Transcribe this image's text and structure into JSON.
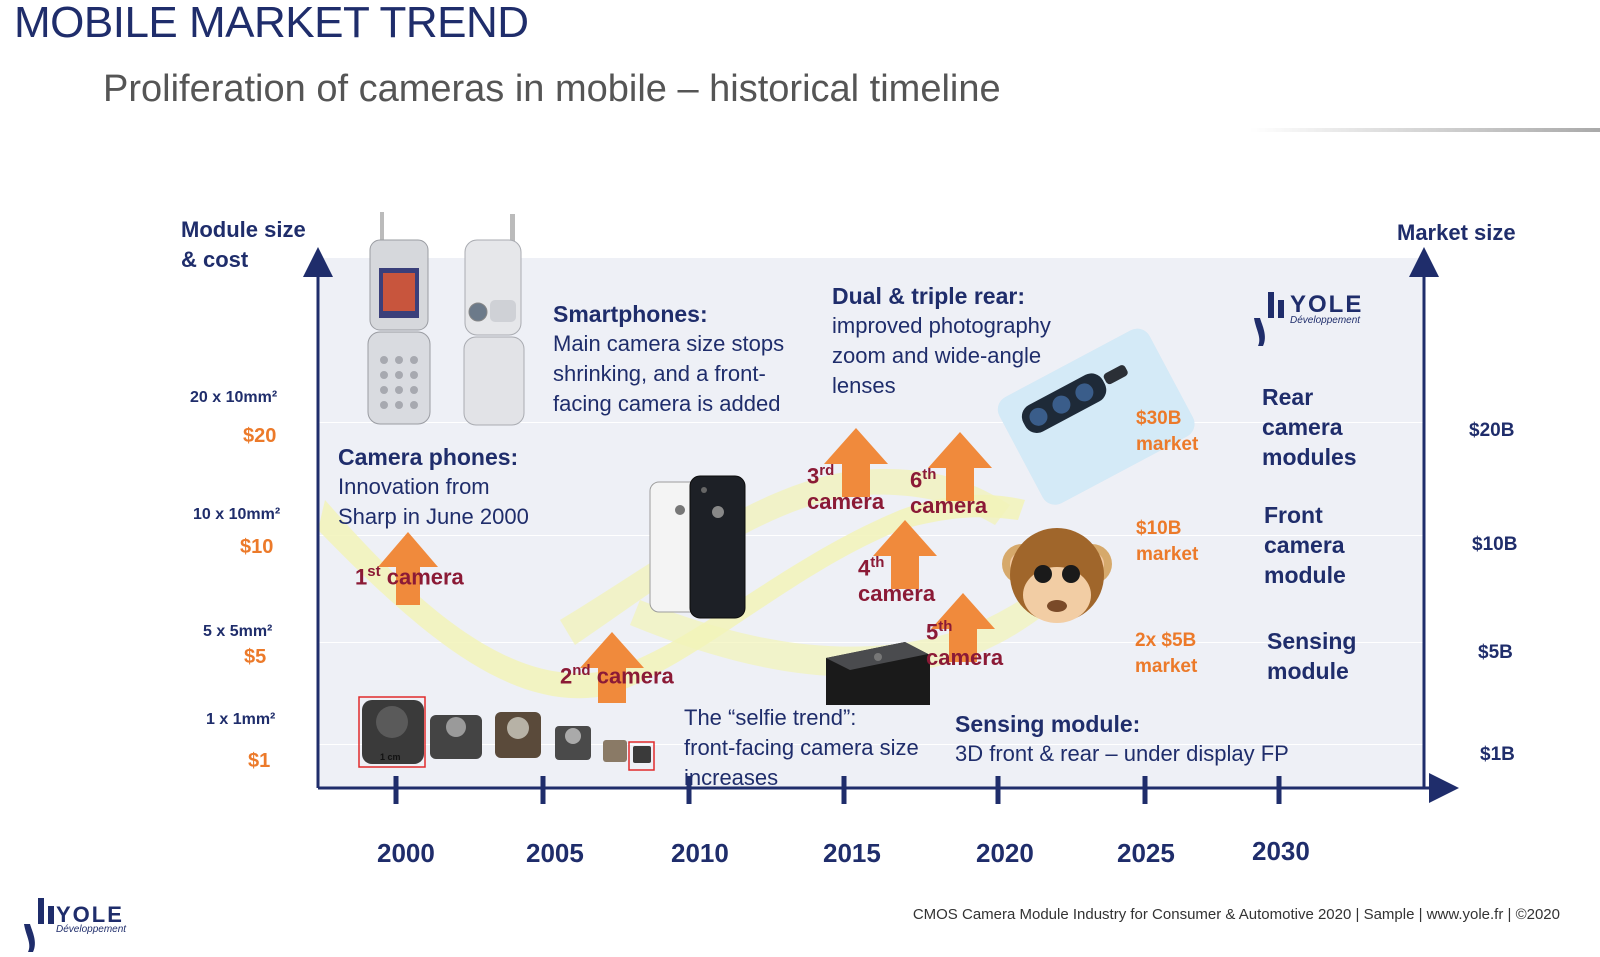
{
  "header": {
    "title": "MOBILE MARKET TREND",
    "subtitle": "Proliferation of cameras in mobile – historical timeline"
  },
  "axes": {
    "left_label": [
      "Module size",
      "& cost"
    ],
    "right_label": "Market size",
    "left_ticks": [
      {
        "size": "20 x 10mm²",
        "cost": "$20"
      },
      {
        "size": "10 x 10mm²",
        "cost": "$10"
      },
      {
        "size": "5 x 5mm²",
        "cost": "$5"
      },
      {
        "size": "1 x 1mm²",
        "cost": "$1"
      }
    ],
    "right_ticks": [
      "$20B",
      "$10B",
      "$5B",
      "$1B"
    ],
    "x_ticks": [
      "2000",
      "2005",
      "2010",
      "2015",
      "2020",
      "2025",
      "2030"
    ]
  },
  "callouts": {
    "camera_phones": {
      "heading": "Camera phones:",
      "lines": [
        "Innovation from",
        "Sharp in June 2000"
      ]
    },
    "smartphones": {
      "heading": "Smartphones:",
      "lines": [
        "Main camera size stops",
        "shrinking, and a front-",
        "facing camera is added"
      ]
    },
    "dual_triple": {
      "heading": "Dual & triple rear:",
      "lines": [
        "improved photography",
        "zoom and wide-angle",
        "lenses"
      ]
    },
    "selfie": {
      "lines": [
        "The “selfie trend”:",
        "front-facing camera size",
        "increases"
      ]
    },
    "sensing": {
      "heading": "Sensing module:",
      "line": "3D front & rear – under display FP"
    }
  },
  "cameras": {
    "first": {
      "num": "1",
      "sup": "st",
      "word": "camera"
    },
    "second": {
      "num": "2",
      "sup": "nd",
      "word": "camera"
    },
    "third": {
      "num": "3",
      "sup": "rd",
      "word": "camera"
    },
    "fourth": {
      "num": "4",
      "sup": "th",
      "word": "camera"
    },
    "fifth": {
      "num": "5",
      "sup": "th",
      "word": "camera"
    },
    "sixth": {
      "num": "6",
      "sup": "th",
      "word": "camera"
    }
  },
  "markets": {
    "m30": [
      "$30B",
      "market"
    ],
    "m10": [
      "$10B",
      "market"
    ],
    "m5": [
      "2x $5B",
      "market"
    ]
  },
  "segments": {
    "rear": [
      "Rear",
      "camera",
      "modules"
    ],
    "front": [
      "Front",
      "camera",
      "module"
    ],
    "sensing": [
      "Sensing",
      "module"
    ]
  },
  "logo": {
    "brand": "YOLE",
    "sub": "Développement"
  },
  "module_photo_label": "1 cm",
  "footer": "CMOS Camera Module Industry for Consumer & Automotive 2020 | Sample | www.yole.fr | ©2020",
  "colors": {
    "navy": "#1f2d6b",
    "orange": "#ec7a2a",
    "maroon": "#8b1a36",
    "arrow": "#f08a3c",
    "band": "#f2f3b8"
  }
}
